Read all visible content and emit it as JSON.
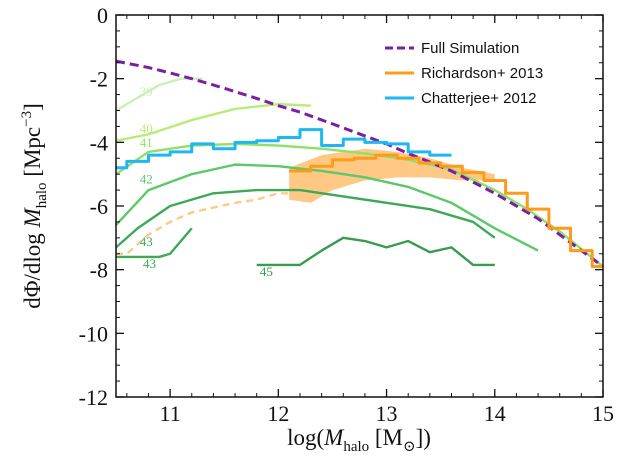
{
  "chart_data": {
    "type": "line",
    "title": "",
    "xlabel_parts": {
      "pre": "log(",
      "italic": "M",
      "sub": "halo",
      "post": " [M",
      "sun": "⊙",
      "end": "])"
    },
    "ylabel_parts": {
      "pre": "dΦ/dlog ",
      "italic": "M",
      "sub": "halo",
      "post": " [Mpc",
      "sup": "−3",
      "end": "]"
    },
    "xlim": [
      10.5,
      15
    ],
    "ylim": [
      -12,
      0
    ],
    "xticks": [
      11,
      12,
      13,
      14,
      15
    ],
    "xtick_labels": [
      "11",
      "12",
      "13",
      "14",
      "15"
    ],
    "yticks": [
      -12,
      -10,
      -8,
      -6,
      -4,
      -2,
      0
    ],
    "ytick_labels": [
      "-12",
      "-10",
      "-8",
      "-6",
      "-4",
      "-2",
      "0"
    ],
    "legend": [
      {
        "label": "Full Simulation",
        "color": "#7b1fa2",
        "style": "dashed"
      },
      {
        "label": "Richardson+ 2013",
        "color": "#ff9a1a",
        "style": "solid"
      },
      {
        "label": "Chatterjee+ 2012",
        "color": "#1eb7ef",
        "style": "solid"
      }
    ],
    "series": [
      {
        "name": "Full Simulation",
        "color": "#7b1fa2",
        "dashed": true,
        "x": [
          10.5,
          10.8,
          11,
          11.2,
          11.5,
          11.8,
          12,
          12.2,
          12.5,
          12.8,
          13,
          13.2,
          13.4,
          13.6,
          13.8,
          14,
          14.2,
          14.4,
          14.6,
          14.8,
          15
        ],
        "y": [
          -1.45,
          -1.65,
          -1.82,
          -2.0,
          -2.3,
          -2.62,
          -2.85,
          -3.05,
          -3.42,
          -3.8,
          -4.05,
          -4.35,
          -4.62,
          -4.9,
          -5.25,
          -5.6,
          -6.0,
          -6.4,
          -6.9,
          -7.4,
          -7.9
        ]
      },
      {
        "name": "Chatterjee+ 2012",
        "color": "#1eb7ef",
        "step": true,
        "x": [
          10.5,
          10.6,
          10.8,
          11,
          11.2,
          11.4,
          11.6,
          11.8,
          12,
          12.2,
          12.4,
          12.6,
          12.8,
          13,
          13.2,
          13.4,
          13.6
        ],
        "y": [
          -4.8,
          -4.6,
          -4.4,
          -4.3,
          -4.05,
          -4.2,
          -4.0,
          -3.95,
          -3.85,
          -3.6,
          -4.1,
          -3.9,
          -4.0,
          -4.05,
          -4.3,
          -4.4,
          -4.4
        ]
      },
      {
        "name": "Richardson+ 2013",
        "color": "#ff9a1a",
        "step": true,
        "x": [
          12.1,
          12.3,
          12.5,
          12.7,
          12.9,
          13.1,
          13.3,
          13.5,
          13.7,
          13.9,
          14.1,
          14.3,
          14.5,
          14.7,
          14.9,
          15
        ],
        "y": [
          -4.9,
          -4.75,
          -4.55,
          -4.5,
          -4.4,
          -4.5,
          -4.65,
          -4.75,
          -4.95,
          -5.2,
          -5.6,
          -6.1,
          -6.7,
          -7.4,
          -7.9,
          -7.9
        ]
      },
      {
        "name": "39",
        "color": "#c8f0b8",
        "x": [
          10.5,
          10.7,
          10.9,
          11.1,
          11.3
        ],
        "y": [
          -3.0,
          -2.6,
          -2.2,
          -2.0,
          -2.0
        ]
      },
      {
        "name": "40",
        "color": "#b8ec7a",
        "x": [
          10.5,
          10.8,
          11.2,
          11.6,
          12.0,
          12.3
        ],
        "y": [
          -3.95,
          -3.75,
          -3.3,
          -2.95,
          -2.8,
          -2.85
        ]
      },
      {
        "name": "41",
        "color": "#8ee06a",
        "x": [
          10.5,
          10.8,
          11.2,
          11.6,
          12.0,
          12.4,
          12.8,
          13.2,
          13.6,
          14.0,
          14.3,
          14.6,
          15.0
        ],
        "y": [
          -5.0,
          -4.3,
          -4.1,
          -4.05,
          -4.1,
          -4.2,
          -4.35,
          -4.55,
          -4.85,
          -5.5,
          -6.1,
          -6.8,
          -7.9
        ]
      },
      {
        "name": "42",
        "color": "#5cc86a",
        "x": [
          10.5,
          10.8,
          11.2,
          11.6,
          12.0,
          12.4,
          12.8,
          13.2,
          13.6,
          14.0,
          14.4
        ],
        "y": [
          -6.6,
          -5.5,
          -5.0,
          -4.7,
          -4.75,
          -4.9,
          -5.1,
          -5.4,
          -5.9,
          -6.7,
          -7.4
        ]
      },
      {
        "name": "43",
        "color": "#3ea858",
        "x": [
          10.5,
          10.7,
          11.0,
          11.4,
          11.8,
          12.2,
          12.6,
          13.0,
          13.4,
          13.8,
          14.0
        ],
        "y": [
          -7.3,
          -6.7,
          -6.0,
          -5.6,
          -5.5,
          -5.5,
          -5.7,
          -5.9,
          -6.1,
          -6.5,
          -7.0
        ]
      },
      {
        "name": "43",
        "color": "#3ea858",
        "x": [
          10.5,
          10.6,
          10.9,
          11.0,
          11.2
        ],
        "y": [
          -7.6,
          -7.6,
          -7.6,
          -7.5,
          -6.7
        ]
      },
      {
        "name": "43",
        "color": "#ffc98a",
        "dashed": true,
        "x": [
          10.5,
          10.6,
          10.8,
          11,
          11.2,
          11.4,
          11.6,
          11.8,
          12.0,
          12.1
        ],
        "y": [
          -7.5,
          -7.5,
          -6.9,
          -6.5,
          -6.2,
          -6.05,
          -5.9,
          -5.8,
          -5.6,
          -5.6
        ]
      },
      {
        "name": "45",
        "color": "#3a9a50",
        "x": [
          11.8,
          12.0,
          12.2,
          12.4,
          12.6,
          12.8,
          13.0,
          13.2,
          13.4,
          13.6,
          13.8,
          14.0
        ],
        "y": [
          -7.85,
          -7.85,
          -7.85,
          -7.4,
          -7.0,
          -7.1,
          -7.3,
          -7.1,
          -7.45,
          -7.3,
          -7.85,
          -7.85
        ]
      }
    ],
    "band": {
      "name": "Richardson+ 2013 uncertainty",
      "color": "#ffc070",
      "x_upper": [
        12.1,
        12.4,
        12.8,
        13.1,
        13.4,
        13.7,
        14.0
      ],
      "y_upper": [
        -4.8,
        -4.4,
        -4.2,
        -4.3,
        -4.5,
        -4.8,
        -5.0
      ],
      "x_lower": [
        14.0,
        13.7,
        13.4,
        13.1,
        12.8,
        12.5,
        12.3,
        12.1
      ],
      "y_lower": [
        -5.2,
        -5.2,
        -5.1,
        -5.1,
        -5.2,
        -5.5,
        -5.9,
        -5.8
      ]
    },
    "labels": [
      {
        "text": "39",
        "x": 10.72,
        "y": -2.55,
        "color": "#c8f0b8"
      },
      {
        "text": "40",
        "x": 10.72,
        "y": -3.7,
        "color": "#b8ec7a"
      },
      {
        "text": "41",
        "x": 10.72,
        "y": -4.15,
        "color": "#8ee06a"
      },
      {
        "text": "42",
        "x": 10.72,
        "y": -5.3,
        "color": "#5cc86a"
      },
      {
        "text": "43",
        "x": 10.72,
        "y": -7.25,
        "color": "#3ea858"
      },
      {
        "text": "43",
        "x": 10.75,
        "y": -7.95,
        "color": "#3ea858"
      },
      {
        "text": "45",
        "x": 11.83,
        "y": -8.2,
        "color": "#3a9a50"
      }
    ]
  }
}
